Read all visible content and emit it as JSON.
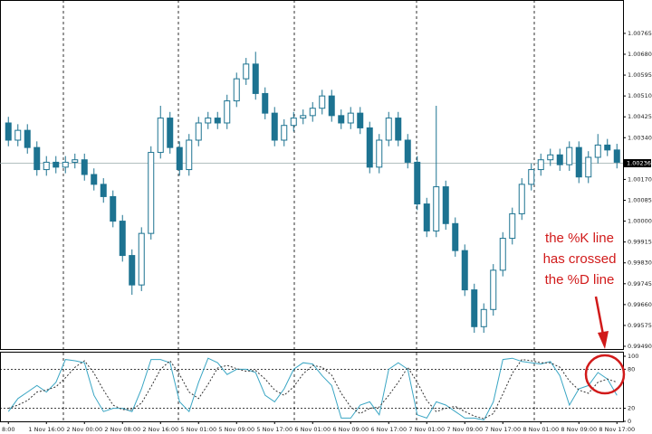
{
  "chart_data": [
    {
      "type": "candlestick",
      "categories": [
        "8:00",
        null,
        null,
        null,
        "1 Nov 16:00",
        null,
        null,
        null,
        "2 Nov 00:00",
        null,
        null,
        null,
        "2 Nov 08:00",
        null,
        null,
        null,
        "2 Nov 16:00",
        null,
        null,
        null,
        "5 Nov 01:00",
        null,
        null,
        null,
        "5 Nov 09:00",
        null,
        null,
        null,
        "5 Nov 17:00",
        null,
        null,
        null,
        "6 Nov 01:00",
        null,
        null,
        null,
        "6 Nov 09:00",
        null,
        null,
        null,
        "6 Nov 17:00",
        null,
        null,
        null,
        "7 Nov 01:00",
        null,
        null,
        null,
        "7 Nov 09:00",
        null,
        null,
        null,
        "7 Nov 17:00",
        null,
        null,
        null,
        "8 Nov 01:00",
        null,
        null,
        null,
        "8 Nov 09:00",
        null,
        null,
        null,
        "8 Nov 17:00"
      ],
      "open": [
        1.004,
        1.0033,
        1.0037,
        1.003,
        1.0021,
        1.0024,
        1.0022,
        1.0024,
        1.0025,
        1.0019,
        1.0015,
        1.001,
        1.0,
        0.9986,
        0.9974,
        0.9995,
        1.0028,
        1.0042,
        1.003,
        1.0021,
        1.0033,
        1.004,
        1.0042,
        1.004,
        1.0049,
        1.0058,
        1.0064,
        1.0052,
        1.0044,
        1.0033,
        1.0039,
        1.0042,
        1.0043,
        1.0046,
        1.0051,
        1.0043,
        1.004,
        1.0044,
        1.0038,
        1.0022,
        1.0033,
        1.0042,
        1.0033,
        1.0024,
        1.0007,
        0.9996,
        1.0014,
        0.9999,
        0.9988,
        0.9972,
        0.9957,
        0.9964,
        0.998,
        0.9993,
        1.0003,
        1.0015,
        1.0021,
        1.0025,
        1.0027,
        1.0023,
        1.003,
        1.0018,
        1.0026,
        1.0031,
        1.0029
      ],
      "high": [
        1.00425,
        1.00395,
        1.00395,
        1.00325,
        1.00265,
        1.00265,
        1.00265,
        1.00275,
        1.00275,
        1.00215,
        1.00175,
        1.00125,
        1.00025,
        0.99885,
        0.99975,
        1.00305,
        1.0047,
        1.00445,
        1.00325,
        1.00355,
        1.00425,
        1.00445,
        1.00445,
        1.00515,
        1.00605,
        1.00665,
        1.0069,
        1.00545,
        1.00465,
        1.00415,
        1.00445,
        1.00455,
        1.00485,
        1.00535,
        1.00535,
        1.00455,
        1.00465,
        1.00465,
        1.00405,
        1.00355,
        1.00445,
        1.00445,
        1.00355,
        1.00265,
        1.00095,
        1.0047,
        1.00165,
        1.00015,
        0.99905,
        0.99745,
        0.99665,
        0.99825,
        0.99955,
        1.00055,
        1.00175,
        1.00235,
        1.00275,
        1.00295,
        1.00295,
        1.00325,
        1.00325,
        1.00285,
        1.00355,
        1.00335,
        1.00315
      ],
      "low": [
        1.00305,
        1.00305,
        1.00275,
        1.00185,
        1.00185,
        1.00195,
        1.00195,
        1.00215,
        1.00165,
        1.00125,
        1.00075,
        0.99975,
        0.99835,
        0.997,
        0.99715,
        0.99925,
        1.00255,
        1.00275,
        1.00185,
        1.00185,
        1.00305,
        1.00375,
        1.00375,
        1.00375,
        1.00465,
        1.00555,
        1.00495,
        1.00415,
        1.00305,
        1.00305,
        1.00365,
        1.00395,
        1.00405,
        1.00435,
        1.00405,
        1.00375,
        1.00375,
        1.00355,
        1.00195,
        1.00195,
        1.00305,
        1.00305,
        1.00215,
        1.00045,
        0.99935,
        0.99935,
        0.99965,
        0.99855,
        0.99695,
        0.99545,
        0.99545,
        0.99615,
        0.99775,
        0.99905,
        1.00005,
        1.00125,
        1.00185,
        1.00225,
        1.00205,
        1.00205,
        1.00155,
        1.00155,
        1.00235,
        1.00265,
        1.00215
      ],
      "close": [
        1.0033,
        1.0037,
        1.003,
        1.0021,
        1.0024,
        1.0022,
        1.0024,
        1.0025,
        1.0019,
        1.0015,
        1.001,
        1.0,
        0.9986,
        0.9974,
        0.9995,
        1.0028,
        1.0042,
        1.003,
        1.0021,
        1.0033,
        1.004,
        1.0042,
        1.004,
        1.0049,
        1.0058,
        1.0064,
        1.0052,
        1.0044,
        1.0033,
        1.0039,
        1.0042,
        1.0043,
        1.0046,
        1.0051,
        1.0043,
        1.004,
        1.0044,
        1.0038,
        1.0022,
        1.0033,
        1.0042,
        1.0033,
        1.0024,
        1.0007,
        0.9996,
        1.0014,
        0.9999,
        0.9988,
        0.9972,
        0.9957,
        0.9964,
        0.998,
        0.9993,
        1.0003,
        1.0015,
        1.0021,
        1.0025,
        1.0027,
        1.0023,
        1.003,
        1.0018,
        1.0026,
        1.0031,
        1.0029,
        1.0024
      ],
      "up_color": "#ffffff",
      "down_color": "#1d7391",
      "edge_color": "#1d7391",
      "ylim": [
        0.99479,
        1.00901
      ],
      "yticks": [
        {
          "value": 1.00765,
          "label": "1.00765"
        },
        {
          "value": 1.0068,
          "label": "1.00680"
        },
        {
          "value": 1.00595,
          "label": "1.00595"
        },
        {
          "value": 1.0051,
          "label": "1.00510"
        },
        {
          "value": 1.00425,
          "label": "1.00425"
        },
        {
          "value": 1.0034,
          "label": "1.00340"
        },
        {
          "value": 1.0017,
          "label": "1.00170"
        },
        {
          "value": 1.00085,
          "label": "1.00085"
        },
        {
          "value": 1.0,
          "label": "1.00000"
        },
        {
          "value": 0.99915,
          "label": "0.99915"
        },
        {
          "value": 0.9983,
          "label": "0.99830"
        },
        {
          "value": 0.99745,
          "label": "0.99745"
        },
        {
          "value": 0.9966,
          "label": "0.99660"
        },
        {
          "value": 0.99575,
          "label": "0.99575"
        },
        {
          "value": 0.9949,
          "label": "0.99490"
        }
      ],
      "last_price": 1.00236,
      "annotation": [
        "the %K line",
        "has crossed",
        "the %D line"
      ]
    },
    {
      "type": "line",
      "series": [
        {
          "color": "#3aa6c4",
          "values": [
            15,
            35,
            45,
            55,
            45,
            60,
            95,
            93,
            90,
            40,
            15,
            20,
            20,
            15,
            50,
            95,
            95,
            90,
            30,
            15,
            60,
            97,
            90,
            72,
            80,
            80,
            75,
            40,
            30,
            50,
            80,
            90,
            88,
            70,
            55,
            5,
            5,
            25,
            30,
            10,
            80,
            90,
            80,
            10,
            5,
            30,
            25,
            15,
            5,
            5,
            2,
            30,
            95,
            97,
            92,
            90,
            88,
            92,
            70,
            25,
            50,
            55,
            75,
            65,
            40
          ]
        },
        {
          "color": "#333333",
          "dashed": true,
          "values": [
            20,
            25,
            32,
            45,
            48,
            53,
            67,
            83,
            93,
            74,
            48,
            25,
            18,
            18,
            28,
            53,
            80,
            93,
            72,
            45,
            35,
            57,
            82,
            86,
            81,
            77,
            78,
            65,
            48,
            40,
            53,
            73,
            86,
            83,
            71,
            43,
            22,
            12,
            20,
            22,
            40,
            60,
            83,
            60,
            32,
            15,
            20,
            23,
            15,
            8,
            4,
            12,
            42,
            74,
            95,
            93,
            90,
            90,
            83,
            62,
            48,
            43,
            60,
            65,
            60
          ]
        }
      ],
      "ylim": [
        0,
        100
      ],
      "yticks": [
        100,
        80,
        20,
        0
      ],
      "levels": [
        80,
        20
      ]
    }
  ]
}
